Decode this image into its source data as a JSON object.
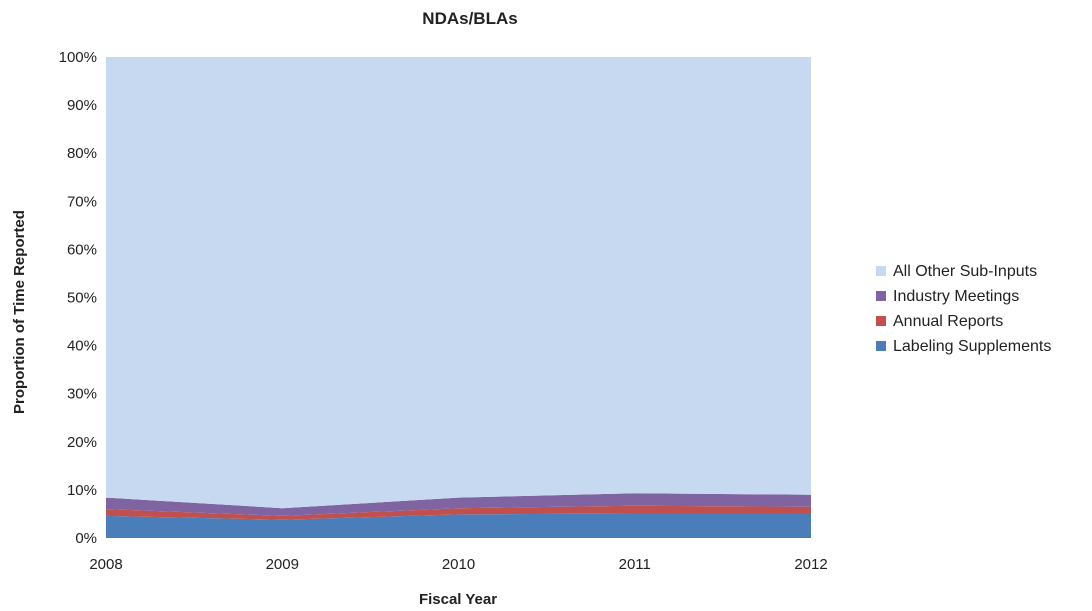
{
  "chart_data": {
    "type": "area",
    "title": "NDAs/BLAs",
    "xlabel": "Fiscal Year",
    "ylabel": "Proportion of Time Reported",
    "x": [
      "2008",
      "2009",
      "2010",
      "2011",
      "2012"
    ],
    "y_ticks": [
      "0%",
      "10%",
      "20%",
      "30%",
      "40%",
      "50%",
      "60%",
      "70%",
      "80%",
      "90%",
      "100%"
    ],
    "ylim": [
      0,
      100
    ],
    "stacked": true,
    "grid": false,
    "legend_position": "right",
    "series": [
      {
        "name": "Labeling Supplements",
        "values": [
          4.6,
          3.8,
          4.9,
          5.1,
          5.1
        ],
        "color": "#4A7EBB"
      },
      {
        "name": "Annual Reports",
        "values": [
          1.4,
          0.8,
          1.3,
          1.6,
          1.4
        ],
        "color": "#C0504D"
      },
      {
        "name": "Industry Meetings",
        "values": [
          2.4,
          1.6,
          2.2,
          2.6,
          2.5
        ],
        "color": "#8064A2"
      },
      {
        "name": "All Other Sub-Inputs",
        "values": [
          91.6,
          93.8,
          91.6,
          90.7,
          91.0
        ],
        "color": "#C6D9F1"
      }
    ]
  }
}
